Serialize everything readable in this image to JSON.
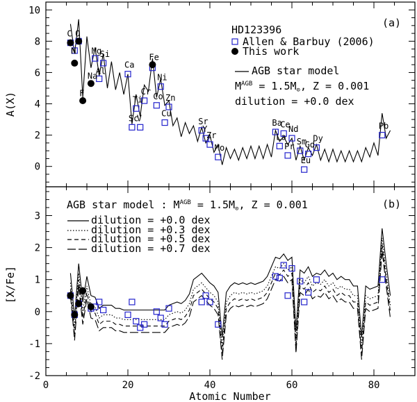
{
  "chart_data": [
    {
      "type": "scatter",
      "panel": "(a)",
      "star": "HD123396",
      "xlabel": "Atomic Number",
      "ylabel": "A(X)",
      "xlim": [
        0,
        90
      ],
      "ylim": [
        -1.3,
        10.5
      ],
      "yticks": [
        0,
        2,
        4,
        6,
        8,
        10
      ],
      "legend": {
        "allen_label": "Allen & Barbuy (2006)",
        "this_work_label": "This work",
        "model_label": "AGB star model",
        "mass_label": "M",
        "mass_sup": "AGB",
        "mass_value": " = 1.5M",
        "metal": ", Z = 0.001",
        "dilution": "dilution = +0.0 dex"
      },
      "model_line": {
        "x": [
          6,
          7,
          8,
          9,
          10,
          11,
          12,
          13,
          14,
          15,
          16,
          17,
          18,
          19,
          20,
          21,
          22,
          23,
          24,
          25,
          26,
          27,
          28,
          29,
          30,
          31,
          32,
          33,
          34,
          35,
          36,
          37,
          38,
          39,
          40,
          41,
          42,
          43,
          44,
          45,
          46,
          47,
          48,
          49,
          50,
          51,
          52,
          53,
          54,
          55,
          56,
          57,
          58,
          59,
          60,
          61,
          62,
          63,
          64,
          65,
          66,
          67,
          68,
          69,
          70,
          71,
          72,
          73,
          74,
          75,
          76,
          77,
          78,
          79,
          80,
          81,
          82,
          83,
          84
        ],
        "y": [
          9.1,
          7.2,
          9.4,
          4.4,
          8.3,
          6.3,
          7.6,
          5.8,
          7.2,
          5.0,
          6.7,
          4.9,
          6.0,
          4.6,
          5.9,
          2.7,
          4.6,
          3.2,
          5.2,
          4.8,
          6.9,
          4.4,
          5.6,
          3.9,
          4.2,
          2.6,
          3.1,
          1.9,
          2.8,
          2.1,
          2.6,
          1.6,
          2.5,
          1.5,
          2.0,
          0.9,
          1.4,
          0.1,
          1.2,
          0.5,
          1.1,
          0.4,
          1.2,
          0.5,
          1.3,
          0.5,
          1.3,
          0.5,
          1.4,
          0.6,
          2.3,
          1.6,
          1.9,
          1.4,
          1.8,
          0.4,
          1.3,
          0.4,
          1.2,
          0.7,
          1.4,
          0.4,
          1.1,
          0.3,
          1.1,
          0.3,
          1.0,
          0.3,
          1.0,
          0.3,
          1.0,
          0.3,
          1.2,
          0.6,
          1.5,
          0.7,
          3.4,
          1.8,
          2.3
        ]
      },
      "allen_points": [
        {
          "x": 6,
          "y": 7.9
        },
        {
          "x": 7,
          "y": 7.4
        },
        {
          "x": 8,
          "y": 8.0
        },
        {
          "x": 12,
          "y": 6.9
        },
        {
          "x": 13,
          "y": 5.6
        },
        {
          "x": 14,
          "y": 6.6
        },
        {
          "x": 20,
          "y": 5.9
        },
        {
          "x": 21,
          "y": 2.5
        },
        {
          "x": 22,
          "y": 3.7
        },
        {
          "x": 23,
          "y": 2.5
        },
        {
          "x": 24,
          "y": 4.2
        },
        {
          "x": 26,
          "y": 6.3
        },
        {
          "x": 27,
          "y": 3.9
        },
        {
          "x": 28,
          "y": 5.1
        },
        {
          "x": 29,
          "y": 2.8
        },
        {
          "x": 30,
          "y": 3.8
        },
        {
          "x": 38,
          "y": 2.3
        },
        {
          "x": 39,
          "y": 1.8
        },
        {
          "x": 40,
          "y": 1.4
        },
        {
          "x": 42,
          "y": 0.6
        },
        {
          "x": 56,
          "y": 2.2
        },
        {
          "x": 57,
          "y": 1.3
        },
        {
          "x": 58,
          "y": 2.1
        },
        {
          "x": 59,
          "y": 0.7
        },
        {
          "x": 60,
          "y": 1.8
        },
        {
          "x": 62,
          "y": 1.0
        },
        {
          "x": 63,
          "y": -0.2
        },
        {
          "x": 64,
          "y": 0.8
        },
        {
          "x": 66,
          "y": 1.2
        },
        {
          "x": 82,
          "y": 2.0
        }
      ],
      "this_work_points": [
        {
          "x": 6,
          "y": 7.9
        },
        {
          "x": 7,
          "y": 6.6
        },
        {
          "x": 8,
          "y": 8.0
        },
        {
          "x": 9,
          "y": 4.2
        },
        {
          "x": 11,
          "y": 5.3
        },
        {
          "x": 26,
          "y": 6.5
        }
      ],
      "element_labels": [
        {
          "text": "C",
          "x": 6,
          "y": 8.3
        },
        {
          "text": "O",
          "x": 8,
          "y": 8.3
        },
        {
          "text": "N",
          "x": 7,
          "y": 7.2
        },
        {
          "text": "Na",
          "x": 11,
          "y": 5.6
        },
        {
          "text": "F",
          "x": 9,
          "y": 4.5
        },
        {
          "text": "Mg",
          "x": 12,
          "y": 7.2
        },
        {
          "text": "Si",
          "x": 14,
          "y": 7.0
        },
        {
          "text": "Al",
          "x": 13,
          "y": 5.9
        },
        {
          "text": "Ca",
          "x": 20,
          "y": 6.3
        },
        {
          "text": "Ti",
          "x": 22,
          "y": 4.1
        },
        {
          "text": "Cr",
          "x": 24,
          "y": 4.6
        },
        {
          "text": "Fe",
          "x": 26,
          "y": 6.8
        },
        {
          "text": "Ni",
          "x": 28,
          "y": 5.5
        },
        {
          "text": "Co",
          "x": 27,
          "y": 4.3
        },
        {
          "text": "Zn",
          "x": 30,
          "y": 4.2
        },
        {
          "text": "Sc",
          "x": 21,
          "y": 2.9
        },
        {
          "text": "V",
          "x": 23,
          "y": 2.9
        },
        {
          "text": "Cu",
          "x": 29,
          "y": 3.2
        },
        {
          "text": "Sr",
          "x": 38,
          "y": 2.7
        },
        {
          "text": "Y",
          "x": 39,
          "y": 2.2
        },
        {
          "text": "Zr",
          "x": 40,
          "y": 1.8
        },
        {
          "text": "Mo",
          "x": 42,
          "y": 1.0
        },
        {
          "text": "Ba",
          "x": 56,
          "y": 2.6
        },
        {
          "text": "Ce",
          "x": 58,
          "y": 2.5
        },
        {
          "text": "Nd",
          "x": 60,
          "y": 2.2
        },
        {
          "text": "La",
          "x": 57,
          "y": 1.7
        },
        {
          "text": "Pr",
          "x": 59,
          "y": 1.1
        },
        {
          "text": "Sm",
          "x": 62,
          "y": 1.4
        },
        {
          "text": "Gd",
          "x": 64,
          "y": 1.2
        },
        {
          "text": "Dy",
          "x": 66,
          "y": 1.6
        },
        {
          "text": "Eu",
          "x": 63,
          "y": 0.2
        },
        {
          "text": "Pb",
          "x": 82,
          "y": 2.4
        }
      ]
    },
    {
      "type": "line",
      "panel": "(b)",
      "xlabel": "Atomic Number",
      "ylabel": "[X/Fe]",
      "xlim": [
        0,
        90
      ],
      "ylim": [
        -2.0,
        3.9
      ],
      "xticks": [
        0,
        20,
        40,
        60,
        80
      ],
      "yticks": [
        -2,
        -1,
        0,
        1,
        2,
        3
      ],
      "legend": {
        "title": "AGB star model : M",
        "title_sup": "AGB",
        "title_mass": " = 1.5M",
        "title_metal": ", Z = 0.001",
        "entries": [
          "dilution = +0.0 dex",
          "dilution = +0.3 dex",
          "dilution = +0.5 dex",
          "dilution = +0.7 dex"
        ]
      },
      "series": [
        {
          "name": "dilution = +0.0 dex",
          "style": "solid",
          "offset": 0.0
        },
        {
          "name": "dilution = +0.3 dex",
          "style": "dotted",
          "offset": -0.3
        },
        {
          "name": "dilution = +0.5 dex",
          "style": "dashed",
          "offset": -0.5
        },
        {
          "name": "dilution = +0.7 dex",
          "style": "longdash",
          "offset": -0.7
        }
      ],
      "base_x": [
        6,
        7,
        8,
        9,
        10,
        11,
        12,
        13,
        14,
        15,
        16,
        17,
        18,
        19,
        20,
        21,
        22,
        23,
        24,
        25,
        26,
        27,
        28,
        29,
        30,
        31,
        32,
        33,
        34,
        35,
        36,
        37,
        38,
        39,
        40,
        41,
        42,
        43,
        44,
        45,
        46,
        47,
        48,
        49,
        50,
        51,
        52,
        53,
        54,
        55,
        56,
        57,
        58,
        59,
        60,
        61,
        62,
        63,
        64,
        65,
        66,
        67,
        68,
        69,
        70,
        71,
        72,
        73,
        74,
        75,
        76,
        77,
        78,
        79,
        80,
        81,
        82,
        83,
        84
      ],
      "base_y": [
        1.2,
        -0.2,
        1.5,
        0.3,
        1.1,
        0.5,
        0.45,
        0.1,
        0.2,
        0.2,
        0.2,
        0.1,
        0.1,
        0.05,
        0.05,
        0.05,
        0.05,
        0.05,
        0.05,
        0.05,
        0.05,
        0.05,
        0.05,
        0.05,
        0.2,
        0.25,
        0.3,
        0.25,
        0.35,
        0.55,
        1.0,
        1.1,
        1.2,
        1.05,
        0.9,
        0.8,
        0.6,
        -0.8,
        0.6,
        0.8,
        0.9,
        0.85,
        0.9,
        0.85,
        0.9,
        0.85,
        0.9,
        0.95,
        1.1,
        1.4,
        1.7,
        1.65,
        1.8,
        1.6,
        1.7,
        -0.6,
        1.3,
        1.2,
        1.4,
        1.1,
        1.2,
        1.15,
        1.3,
        1.1,
        1.2,
        1.0,
        1.1,
        1.0,
        1.0,
        0.8,
        0.8,
        -0.8,
        0.8,
        0.7,
        0.75,
        0.8,
        2.6,
        1.5,
        0.5
      ],
      "allen_points": [
        {
          "x": 6,
          "y": 0.5
        },
        {
          "x": 7,
          "y": -0.1
        },
        {
          "x": 8,
          "y": 0.25
        },
        {
          "x": 11,
          "y": 0.1
        },
        {
          "x": 12,
          "y": 0.15
        },
        {
          "x": 13,
          "y": 0.3
        },
        {
          "x": 14,
          "y": 0.05
        },
        {
          "x": 20,
          "y": -0.1
        },
        {
          "x": 21,
          "y": 0.3
        },
        {
          "x": 22,
          "y": -0.3
        },
        {
          "x": 23,
          "y": -0.5
        },
        {
          "x": 24,
          "y": -0.4
        },
        {
          "x": 27,
          "y": 0.0
        },
        {
          "x": 28,
          "y": -0.2
        },
        {
          "x": 29,
          "y": -0.4
        },
        {
          "x": 30,
          "y": 0.1
        },
        {
          "x": 38,
          "y": 0.3
        },
        {
          "x": 39,
          "y": 0.5
        },
        {
          "x": 40,
          "y": 0.3
        },
        {
          "x": 42,
          "y": -0.4
        },
        {
          "x": 56,
          "y": 1.1
        },
        {
          "x": 57,
          "y": 1.05
        },
        {
          "x": 58,
          "y": 1.45
        },
        {
          "x": 59,
          "y": 0.5
        },
        {
          "x": 60,
          "y": 1.35
        },
        {
          "x": 62,
          "y": 0.95
        },
        {
          "x": 63,
          "y": 0.3
        },
        {
          "x": 64,
          "y": 0.6
        },
        {
          "x": 66,
          "y": 1.0
        },
        {
          "x": 82,
          "y": 1.0
        }
      ],
      "this_work_points": [
        {
          "x": 6,
          "y": 0.5,
          "err": 0.12
        },
        {
          "x": 7,
          "y": -0.1,
          "err": 0.12
        },
        {
          "x": 8,
          "y": 0.25,
          "err": 0.12
        },
        {
          "x": 9,
          "y": 0.65,
          "err": 0.12
        },
        {
          "x": 11,
          "y": 0.15,
          "err": 0.12
        }
      ]
    }
  ]
}
